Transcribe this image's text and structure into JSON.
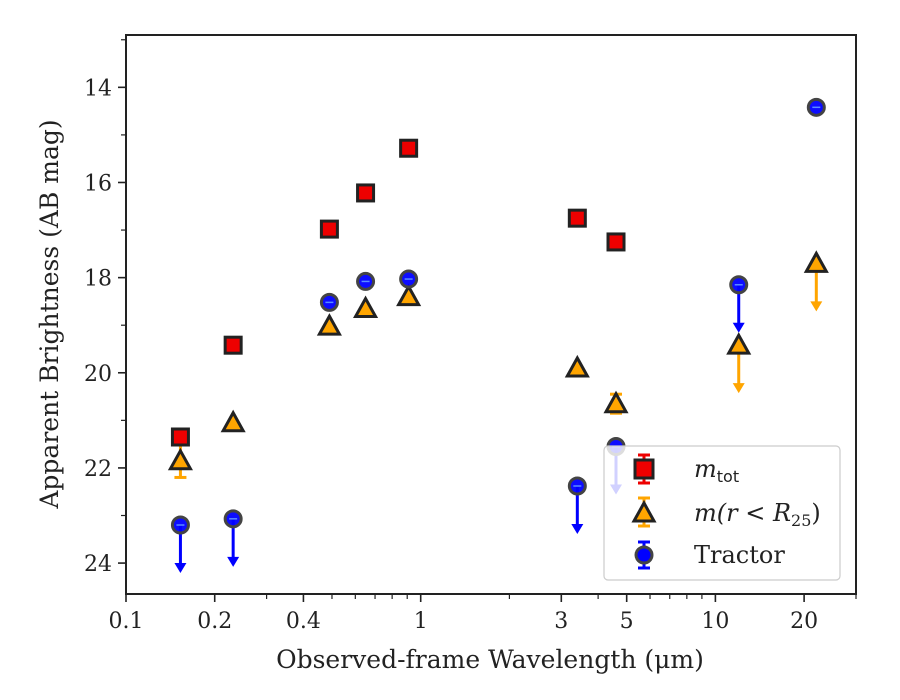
{
  "chart_data": {
    "type": "scatter",
    "xlabel": "Observed-frame Wavelength (μm)",
    "ylabel": "Apparent Brightness (AB mag)",
    "xscale": "log",
    "xlim": [
      0.1,
      30
    ],
    "ylim": [
      24.65,
      12.9
    ],
    "y_inverted": true,
    "xticks": [
      0.1,
      0.2,
      0.4,
      1,
      3,
      5,
      10,
      20
    ],
    "xtick_labels": [
      "0.1",
      "0.2",
      "0.4",
      "1",
      "3",
      "5",
      "10",
      "20"
    ],
    "yticks": [
      14,
      16,
      18,
      20,
      22,
      24
    ],
    "ytick_labels": [
      "14",
      "16",
      "18",
      "20",
      "22",
      "24"
    ],
    "legend_position": "lower-right",
    "series": [
      {
        "name": "m_tot",
        "marker": "square",
        "color": "#ee0000",
        "edge": "#222222",
        "points": [
          {
            "x": 0.153,
            "y": 21.35
          },
          {
            "x": 0.231,
            "y": 19.42
          },
          {
            "x": 0.49,
            "y": 16.98
          },
          {
            "x": 0.65,
            "y": 16.22
          },
          {
            "x": 0.91,
            "y": 15.28
          },
          {
            "x": 3.4,
            "y": 16.75
          },
          {
            "x": 4.6,
            "y": 17.25
          }
        ]
      },
      {
        "name": "m(r < R25)",
        "marker": "triangle",
        "color": "#ffa500",
        "edge": "#222222",
        "points": [
          {
            "x": 0.153,
            "y": 21.85,
            "err": 0.35
          },
          {
            "x": 0.231,
            "y": 21.05
          },
          {
            "x": 0.49,
            "y": 19.02
          },
          {
            "x": 0.65,
            "y": 18.65
          },
          {
            "x": 0.91,
            "y": 18.4
          },
          {
            "x": 3.4,
            "y": 19.9
          },
          {
            "x": 4.6,
            "y": 20.65,
            "err": 0.2
          },
          {
            "x": 12.0,
            "y": 19.42,
            "upper_limit": true
          },
          {
            "x": 22.0,
            "y": 17.7,
            "upper_limit": true
          }
        ]
      },
      {
        "name": "Tractor",
        "marker": "circle",
        "color": "#0000ff",
        "edge": "#444444",
        "points": [
          {
            "x": 0.153,
            "y": 23.2,
            "upper_limit": true
          },
          {
            "x": 0.231,
            "y": 23.07,
            "upper_limit": true
          },
          {
            "x": 0.49,
            "y": 18.52
          },
          {
            "x": 0.65,
            "y": 18.08
          },
          {
            "x": 0.91,
            "y": 18.03
          },
          {
            "x": 3.4,
            "y": 22.38,
            "upper_limit": true
          },
          {
            "x": 4.6,
            "y": 21.55,
            "upper_limit": true
          },
          {
            "x": 12.0,
            "y": 18.15,
            "upper_limit": true
          },
          {
            "x": 22.0,
            "y": 14.42
          }
        ]
      }
    ]
  },
  "legend": {
    "items": [
      {
        "key": "mtot",
        "label": "m",
        "sub": "tot"
      },
      {
        "key": "mr",
        "label": "m(r < R",
        "sub": "25",
        "suffix": ")"
      },
      {
        "key": "tractor",
        "label": "Tractor"
      }
    ]
  }
}
